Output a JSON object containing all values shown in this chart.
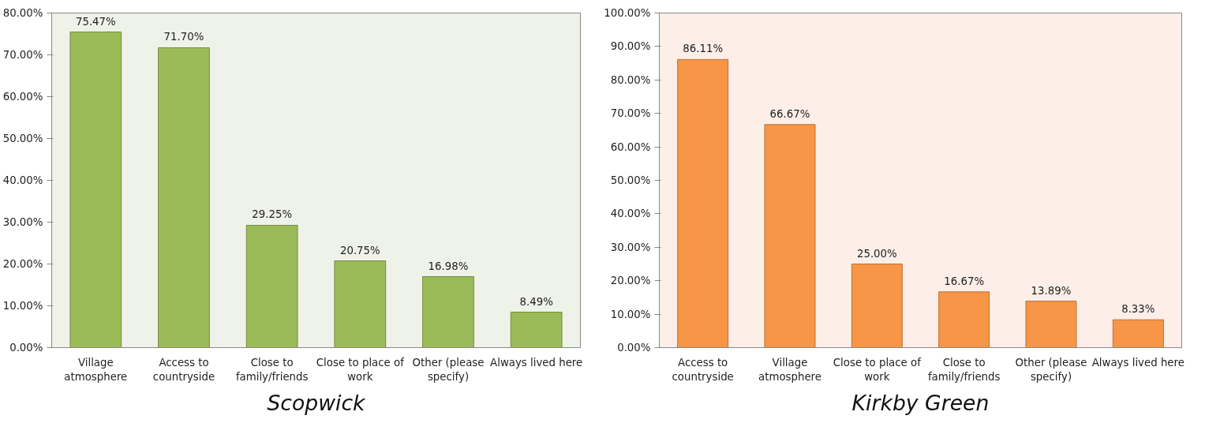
{
  "chart_data": [
    {
      "type": "bar",
      "title": "Scopwick",
      "categories": [
        "Village atmosphere",
        "Access to countryside",
        "Close to family/friends",
        "Close to place of work",
        "Other (please specify)",
        "Always lived here"
      ],
      "values": [
        75.47,
        71.7,
        29.25,
        20.75,
        16.98,
        8.49
      ],
      "color": "#9bbb59",
      "value_labels": [
        "75.47%",
        "71.70%",
        "29.25%",
        "20.75%",
        "16.98%",
        "8.49%"
      ],
      "ylim": [
        0,
        80
      ],
      "yticks": [
        {
          "value": 0,
          "label": "0.00%"
        },
        {
          "value": 10,
          "label": "10.00%"
        },
        {
          "value": 20,
          "label": "20.00%"
        },
        {
          "value": 30,
          "label": "30.00%"
        },
        {
          "value": 40,
          "label": "40.00%"
        },
        {
          "value": 50,
          "label": "50.00%"
        },
        {
          "value": 60,
          "label": "60.00%"
        },
        {
          "value": 70,
          "label": "70.00%"
        },
        {
          "value": 80,
          "label": "80.00%"
        }
      ],
      "grid": false
    },
    {
      "type": "bar",
      "title": "Kirkby Green",
      "categories": [
        "Access to countryside",
        "Village atmosphere",
        "Close to place of work",
        "Close to family/friends",
        "Other (please specify)",
        "Always lived here"
      ],
      "values": [
        86.11,
        66.67,
        25.0,
        16.67,
        13.89,
        8.33
      ],
      "color": "#f79646",
      "value_labels": [
        "86.11%",
        "66.67%",
        "25.00%",
        "16.67%",
        "13.89%",
        "8.33%"
      ],
      "ylim": [
        0,
        100
      ],
      "yticks": [
        {
          "value": 0,
          "label": "0.00%"
        },
        {
          "value": 10,
          "label": "10.00%"
        },
        {
          "value": 20,
          "label": "20.00%"
        },
        {
          "value": 30,
          "label": "30.00%"
        },
        {
          "value": 40,
          "label": "40.00%"
        },
        {
          "value": 50,
          "label": "50.00%"
        },
        {
          "value": 60,
          "label": "60.00%"
        },
        {
          "value": 70,
          "label": "70.00%"
        },
        {
          "value": 80,
          "label": "80.00%"
        },
        {
          "value": 90,
          "label": "90.00%"
        },
        {
          "value": 100,
          "label": "100.00%"
        }
      ],
      "grid": false
    }
  ]
}
